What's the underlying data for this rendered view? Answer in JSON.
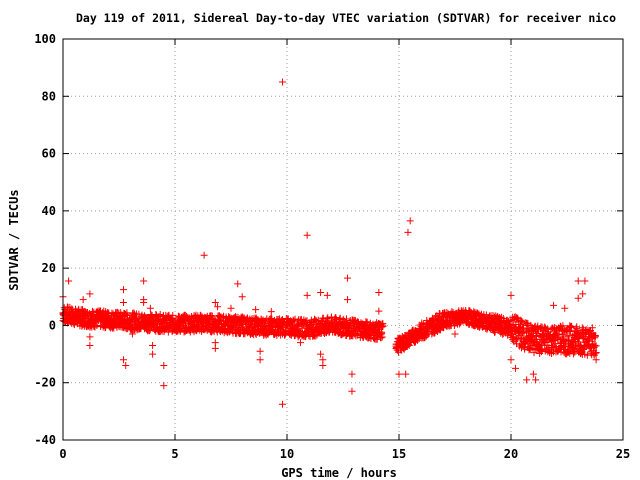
{
  "chart_data": {
    "type": "scatter",
    "title": "Day 119 of 2011, Sidereal Day-to-day VTEC variation (SDTVAR) for receiver nico",
    "xlabel": "GPS time / hours",
    "ylabel": "SDTVAR / TECUs",
    "xlim": [
      0,
      25
    ],
    "ylim": [
      -40,
      100
    ],
    "xticks": [
      0,
      5,
      10,
      15,
      20,
      25
    ],
    "yticks": [
      -40,
      -20,
      0,
      20,
      40,
      60,
      80,
      100
    ],
    "grid": true,
    "marker": "+",
    "color": "#ff0000",
    "series": [
      {
        "name": "SDTVAR",
        "band_trend": [
          [
            0.0,
            4.0
          ],
          [
            0.5,
            3.0
          ],
          [
            1.0,
            2.5
          ],
          [
            2.0,
            2.0
          ],
          [
            3.0,
            1.5
          ],
          [
            4.0,
            1.0
          ],
          [
            5.0,
            0.5
          ],
          [
            6.0,
            0.8
          ],
          [
            7.0,
            0.5
          ],
          [
            8.0,
            0.0
          ],
          [
            9.0,
            -0.5
          ],
          [
            10.0,
            -0.5
          ],
          [
            11.0,
            -1.0
          ],
          [
            12.0,
            0.0
          ],
          [
            13.0,
            -1.0
          ],
          [
            14.0,
            -2.0
          ],
          [
            14.3,
            -2.0
          ],
          [
            15.0,
            -7.0
          ],
          [
            16.0,
            -2.0
          ],
          [
            17.0,
            2.0
          ],
          [
            18.0,
            3.0
          ],
          [
            19.0,
            1.0
          ],
          [
            20.0,
            -1.0
          ],
          [
            21.0,
            -5.0
          ],
          [
            22.0,
            -5.0
          ],
          [
            23.0,
            -5.0
          ],
          [
            23.8,
            -6.0
          ]
        ],
        "scatter_points": [
          [
            0.0,
            10
          ],
          [
            0.25,
            15.5
          ],
          [
            0.9,
            9
          ],
          [
            1.2,
            11
          ],
          [
            1.2,
            -4
          ],
          [
            1.2,
            -7
          ],
          [
            2.7,
            12.5
          ],
          [
            2.7,
            8
          ],
          [
            2.7,
            -12
          ],
          [
            2.8,
            -14
          ],
          [
            3.1,
            -3
          ],
          [
            3.6,
            15.5
          ],
          [
            3.6,
            9
          ],
          [
            3.6,
            8
          ],
          [
            3.9,
            6
          ],
          [
            4.0,
            -7
          ],
          [
            4.0,
            -10
          ],
          [
            4.5,
            -14
          ],
          [
            4.5,
            -21
          ],
          [
            6.3,
            24.5
          ],
          [
            6.8,
            8
          ],
          [
            6.9,
            6.5
          ],
          [
            6.8,
            -6
          ],
          [
            6.8,
            -8
          ],
          [
            7.5,
            6
          ],
          [
            7.8,
            14.5
          ],
          [
            8.0,
            10
          ],
          [
            8.6,
            5.5
          ],
          [
            8.8,
            -9
          ],
          [
            8.8,
            -12
          ],
          [
            9.3,
            4.8
          ],
          [
            9.8,
            85
          ],
          [
            9.8,
            -27.5
          ],
          [
            10.5,
            -4
          ],
          [
            10.6,
            -6
          ],
          [
            10.9,
            31.5
          ],
          [
            10.9,
            10.5
          ],
          [
            11.5,
            11.5
          ],
          [
            11.8,
            10.5
          ],
          [
            11.5,
            -10
          ],
          [
            11.6,
            -12
          ],
          [
            11.6,
            -14
          ],
          [
            12.7,
            16.5
          ],
          [
            12.7,
            9
          ],
          [
            12.9,
            -17
          ],
          [
            12.9,
            -23
          ],
          [
            14.1,
            11.5
          ],
          [
            14.1,
            5
          ],
          [
            14.1,
            -3
          ],
          [
            15.0,
            -17
          ],
          [
            15.3,
            -17
          ],
          [
            15.5,
            36.5
          ],
          [
            15.4,
            32.5
          ],
          [
            17.5,
            -3
          ],
          [
            20.0,
            10.5
          ],
          [
            20.0,
            -12
          ],
          [
            20.2,
            -15
          ],
          [
            20.7,
            -19
          ],
          [
            21.0,
            -17
          ],
          [
            21.1,
            -19
          ],
          [
            21.9,
            7
          ],
          [
            22.4,
            6
          ],
          [
            22.8,
            -9
          ],
          [
            23.0,
            15.5
          ],
          [
            23.2,
            11
          ],
          [
            23.3,
            15.5
          ],
          [
            23.0,
            9.5
          ],
          [
            23.7,
            -10
          ],
          [
            23.8,
            -12
          ]
        ]
      }
    ]
  }
}
